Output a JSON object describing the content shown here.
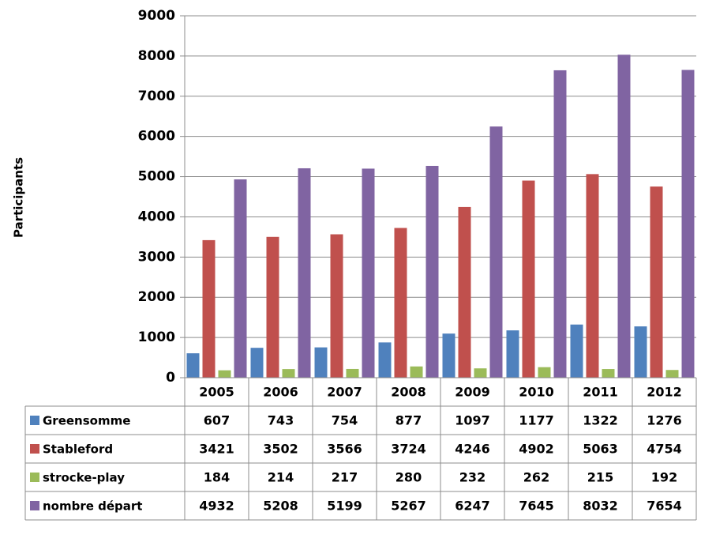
{
  "chart_data": {
    "type": "bar",
    "title": "",
    "xlabel": "",
    "ylabel": "Participants",
    "ylim": [
      0,
      9000
    ],
    "yticks": [
      "0",
      "1000",
      "2000",
      "3000",
      "4000",
      "5000",
      "6000",
      "7000",
      "8000",
      "9000"
    ],
    "grid": true,
    "legend": "data-table",
    "categories": [
      "2005",
      "2006",
      "2007",
      "2008",
      "2009",
      "2010",
      "2011",
      "2012"
    ],
    "series": [
      {
        "name": "Greensomme",
        "color": "#4f81bd",
        "values": [
          607,
          743,
          754,
          877,
          1097,
          1177,
          1322,
          1276
        ]
      },
      {
        "name": "Stableford",
        "color": "#c0504d",
        "values": [
          3421,
          3502,
          3566,
          3724,
          4246,
          4902,
          5063,
          4754
        ]
      },
      {
        "name": "strocke-play",
        "color": "#9bbb59",
        "values": [
          184,
          214,
          217,
          280,
          232,
          262,
          215,
          192
        ]
      },
      {
        "name": "nombre départ",
        "color": "#8064a2",
        "values": [
          4932,
          5208,
          5199,
          5267,
          6247,
          7645,
          8032,
          7654
        ]
      }
    ]
  }
}
